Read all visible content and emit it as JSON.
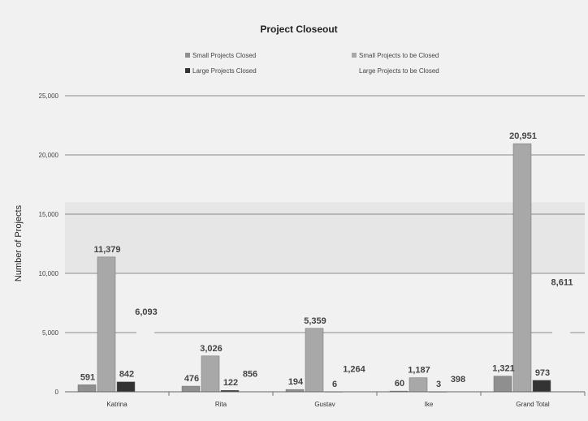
{
  "chart_data": {
    "type": "bar",
    "title": "Project Closeout",
    "ylabel": "Number of Projects",
    "xlabel": "",
    "ylim": [
      0,
      25000
    ],
    "yticks": [
      0,
      5000,
      10000,
      15000,
      20000,
      25000
    ],
    "ytick_labels": [
      "0",
      "5,000",
      "10,000",
      "15,000",
      "20,000",
      "25,000"
    ],
    "categories": [
      "Katrina",
      "Rita",
      "Gustav",
      "Ike",
      "Grand Total"
    ],
    "grid": true,
    "legend_position": "top",
    "series": [
      {
        "name": "Small Projects Closed",
        "color": "#8f8f8f",
        "values": [
          591,
          476,
          194,
          60,
          1321
        ],
        "labels": [
          "591",
          "476",
          "194",
          "60",
          "1,321"
        ]
      },
      {
        "name": "Small Projects to be Closed",
        "color": "#a8a8a8",
        "values": [
          11379,
          3026,
          5359,
          1187,
          20951
        ],
        "labels": [
          "11,379",
          "3,026",
          "5,359",
          "1,187",
          "20,951"
        ]
      },
      {
        "name": "Large Projects Closed",
        "color": "#333333",
        "values": [
          842,
          122,
          6,
          3,
          973
        ],
        "labels": [
          "842",
          "122",
          "6",
          "3",
          "973"
        ]
      },
      {
        "name": "Large Projects to be Closed",
        "color": "#f1f1f1",
        "values": [
          6093,
          856,
          1264,
          398,
          8611
        ],
        "labels": [
          "6,093",
          "856",
          "1,264",
          "398",
          "8,611"
        ]
      }
    ]
  }
}
